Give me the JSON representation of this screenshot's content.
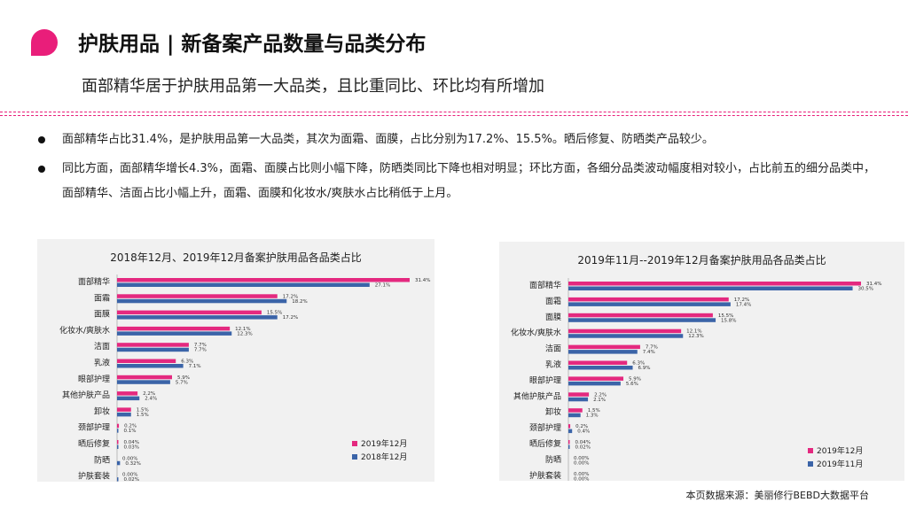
{
  "header": {
    "title": "护肤用品 | 新备案产品数量与品类分布",
    "subtitle": "面部精华居于护肤用品第一大品类，且比重同比、环比均有所增加"
  },
  "bullets": [
    "面部精华占比31.4%，是护肤用品第一大品类，其次为面霜、面膜，占比分别为17.2%、15.5%。晒后修复、防晒类产品较少。",
    "同比方面，面部精华增长4.3%，面霜、面膜占比则小幅下降，防晒类同比下降也相对明显；环比方面，各细分品类波动幅度相对较小，占比前五的细分品类中，面部精华、洁面占比小幅上升，面霜、面膜和化妆水/爽肤水占比稍低于上月。"
  ],
  "colors": {
    "accent": "#e91e7a",
    "series_a": "#e4297f",
    "series_b": "#3b64a8"
  },
  "chart_data": [
    {
      "type": "bar",
      "orientation": "horizontal",
      "title": "2018年12月、2019年12月备案护肤用品各品类占比",
      "categories": [
        "面部精华",
        "面霜",
        "面膜",
        "化妆水/爽肤水",
        "洁面",
        "乳液",
        "眼部护理",
        "其他护肤产品",
        "卸妆",
        "颈部护理",
        "晒后修复",
        "防晒",
        "护肤套装"
      ],
      "series": [
        {
          "name": "2019年12月",
          "values": [
            31.4,
            17.2,
            15.5,
            12.1,
            7.7,
            6.3,
            5.9,
            2.2,
            1.5,
            0.2,
            0.04,
            0.0,
            0.0
          ],
          "labels": [
            "31.4%",
            "17.2%",
            "15.5%",
            "12.1%",
            "7.7%",
            "6.3%",
            "5.9%",
            "2.2%",
            "1.5%",
            "0.2%",
            "0.04%",
            "0.00%",
            "0.00%"
          ]
        },
        {
          "name": "2018年12月",
          "values": [
            27.1,
            18.2,
            17.2,
            12.3,
            7.7,
            7.1,
            5.7,
            2.4,
            1.5,
            0.1,
            0.03,
            0.32,
            0.02
          ],
          "labels": [
            "27.1%",
            "18.2%",
            "17.2%",
            "12.3%",
            "7.7%",
            "7.1%",
            "5.7%",
            "2.4%",
            "1.5%",
            "0.1%",
            "0.03%",
            "0.32%",
            "0.02%"
          ]
        }
      ],
      "xlim": [
        0,
        31.4
      ],
      "legend": "bottom-right"
    },
    {
      "type": "bar",
      "orientation": "horizontal",
      "title": "2019年11月--2019年12月备案护肤用品各品类占比",
      "categories": [
        "面部精华",
        "面霜",
        "面膜",
        "化妆水/爽肤水",
        "洁面",
        "乳液",
        "眼部护理",
        "其他护肤产品",
        "卸妆",
        "颈部护理",
        "晒后修复",
        "防晒",
        "护肤套装"
      ],
      "series": [
        {
          "name": "2019年12月",
          "values": [
            31.4,
            17.2,
            15.5,
            12.1,
            7.7,
            6.3,
            5.9,
            2.2,
            1.5,
            0.2,
            0.04,
            0.0,
            0.0
          ],
          "labels": [
            "31.4%",
            "17.2%",
            "15.5%",
            "12.1%",
            "7.7%",
            "6.3%",
            "5.9%",
            "2.2%",
            "1.5%",
            "0.2%",
            "0.04%",
            "0.00%",
            "0.00%"
          ]
        },
        {
          "name": "2019年11月",
          "values": [
            30.5,
            17.4,
            15.8,
            12.3,
            7.4,
            6.9,
            5.6,
            2.1,
            1.3,
            0.4,
            0.02,
            0.0,
            0.0
          ],
          "labels": [
            "30.5%",
            "17.4%",
            "15.8%",
            "12.3%",
            "7.4%",
            "6.9%",
            "5.6%",
            "2.1%",
            "1.3%",
            "0.4%",
            "0.02%",
            "0.00%",
            "0.00%"
          ]
        }
      ],
      "xlim": [
        0,
        31.4
      ],
      "legend": "bottom-right"
    }
  ],
  "footer": {
    "source": "本页数据来源：美丽修行BEBD大数据平台"
  }
}
